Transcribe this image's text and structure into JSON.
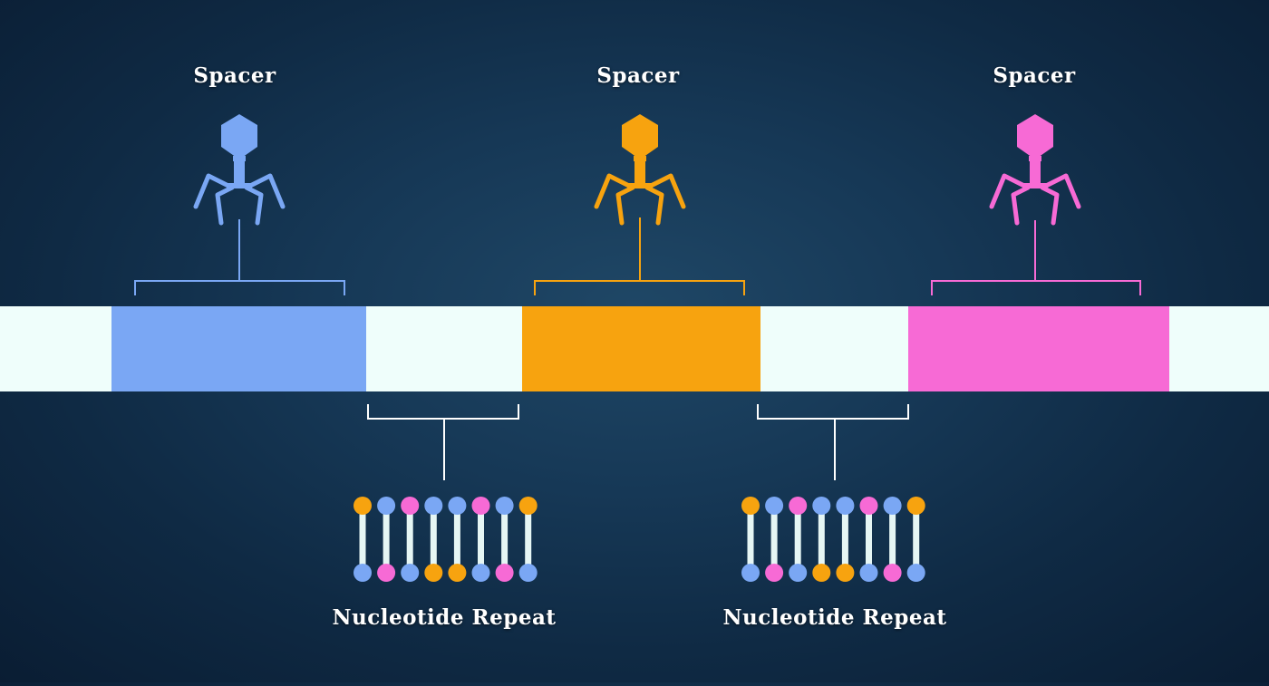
{
  "labels": {
    "spacer_1": "Spacer",
    "spacer_2": "Spacer",
    "spacer_3": "Spacer",
    "repeat_1": "Nucleotide Repeat",
    "repeat_2": "Nucleotide Repeat"
  },
  "colors": {
    "blue": "#7aa7f4",
    "orange": "#f7a30f",
    "pink": "#f76ad5",
    "repeat_white": "#effefb",
    "line_white": "#ffffff",
    "dna_stick": "#e6f6f4"
  },
  "spacers": [
    {
      "id": "spacer-1",
      "color": "blue",
      "icon": "bacteriophage-icon"
    },
    {
      "id": "spacer-2",
      "color": "orange",
      "icon": "bacteriophage-icon"
    },
    {
      "id": "spacer-3",
      "color": "pink",
      "icon": "bacteriophage-icon"
    }
  ],
  "repeats": [
    {
      "id": "repeat-1",
      "icon": "dna-ladder-icon",
      "top": [
        "orange",
        "blue",
        "pink",
        "blue",
        "blue",
        "pink",
        "blue",
        "orange"
      ],
      "bottom": [
        "blue",
        "pink",
        "blue",
        "orange",
        "orange",
        "blue",
        "pink",
        "blue"
      ]
    },
    {
      "id": "repeat-2",
      "icon": "dna-ladder-icon",
      "top": [
        "orange",
        "blue",
        "pink",
        "blue",
        "blue",
        "pink",
        "blue",
        "orange"
      ],
      "bottom": [
        "blue",
        "pink",
        "blue",
        "orange",
        "orange",
        "blue",
        "pink",
        "blue"
      ]
    }
  ]
}
